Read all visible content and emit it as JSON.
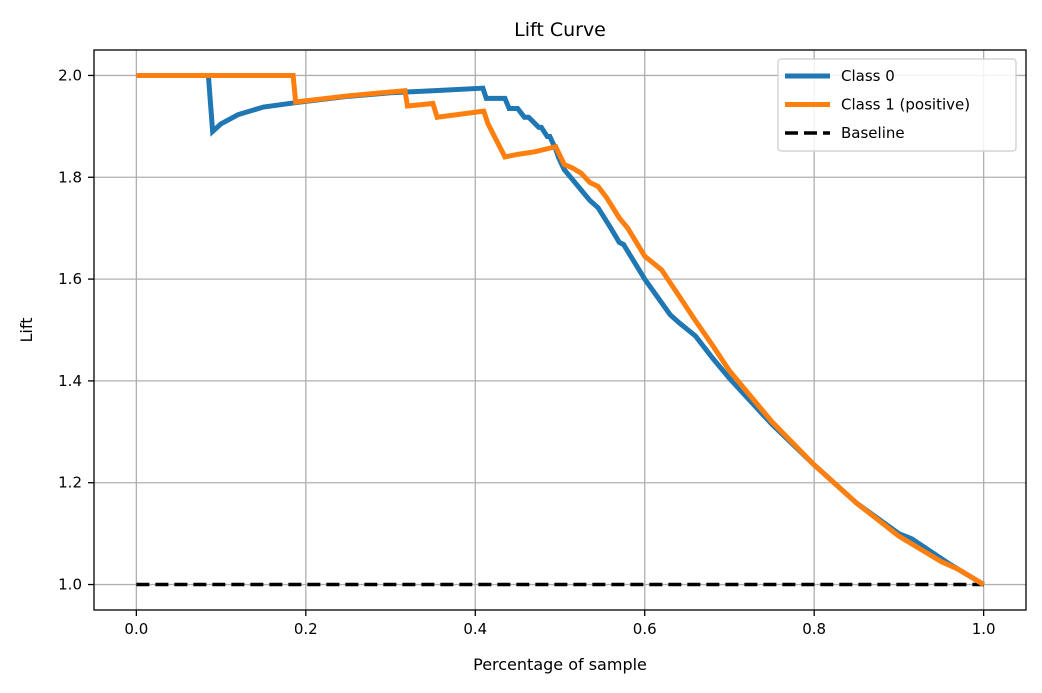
{
  "chart_data": {
    "type": "line",
    "title": "Lift Curve",
    "xlabel": "Percentage of sample",
    "ylabel": "Lift",
    "xlim": [
      -0.05,
      1.05
    ],
    "ylim": [
      0.95,
      2.05
    ],
    "xticks": [
      0.0,
      0.2,
      0.4,
      0.6,
      0.8,
      1.0
    ],
    "xtick_labels": [
      "0.0",
      "0.2",
      "0.4",
      "0.6",
      "0.8",
      "1.0"
    ],
    "yticks": [
      1.0,
      1.2,
      1.4,
      1.6,
      1.8,
      2.0
    ],
    "ytick_labels": [
      "1.0",
      "1.2",
      "1.4",
      "1.6",
      "1.8",
      "2.0"
    ],
    "grid": true,
    "legend_position": "top-right",
    "series": [
      {
        "name": "Class 0",
        "color": "#1f77b4",
        "style": "solid",
        "x": [
          0.0,
          0.085,
          0.09,
          0.1,
          0.12,
          0.15,
          0.19,
          0.25,
          0.3,
          0.35,
          0.409,
          0.413,
          0.435,
          0.44,
          0.45,
          0.458,
          0.463,
          0.475,
          0.478,
          0.485,
          0.488,
          0.495,
          0.498,
          0.505,
          0.515,
          0.525,
          0.535,
          0.545,
          0.56,
          0.57,
          0.575,
          0.6,
          0.63,
          0.64,
          0.66,
          0.68,
          0.7,
          0.75,
          0.8,
          0.85,
          0.9,
          0.915,
          0.96,
          1.0
        ],
        "y": [
          2.0,
          2.0,
          1.89,
          1.905,
          1.923,
          1.938,
          1.947,
          1.959,
          1.966,
          1.97,
          1.975,
          1.955,
          1.955,
          1.935,
          1.935,
          1.918,
          1.918,
          1.898,
          1.898,
          1.88,
          1.88,
          1.855,
          1.84,
          1.815,
          1.795,
          1.775,
          1.755,
          1.74,
          1.7,
          1.672,
          1.668,
          1.6,
          1.53,
          1.515,
          1.488,
          1.445,
          1.405,
          1.315,
          1.235,
          1.16,
          1.1,
          1.09,
          1.04,
          1.0
        ]
      },
      {
        "name": "Class 1 (positive)",
        "color": "#ff7f0e",
        "style": "solid",
        "x": [
          0.0,
          0.185,
          0.188,
          0.25,
          0.317,
          0.32,
          0.35,
          0.355,
          0.41,
          0.415,
          0.435,
          0.45,
          0.47,
          0.495,
          0.505,
          0.515,
          0.525,
          0.535,
          0.545,
          0.555,
          0.57,
          0.58,
          0.6,
          0.62,
          0.64,
          0.66,
          0.68,
          0.7,
          0.75,
          0.8,
          0.85,
          0.9,
          0.92,
          0.95,
          0.97,
          1.0
        ],
        "y": [
          2.0,
          2.0,
          1.948,
          1.96,
          1.97,
          1.94,
          1.945,
          1.918,
          1.93,
          1.905,
          1.84,
          1.845,
          1.85,
          1.86,
          1.825,
          1.818,
          1.808,
          1.79,
          1.782,
          1.76,
          1.72,
          1.7,
          1.645,
          1.618,
          1.568,
          1.518,
          1.47,
          1.42,
          1.32,
          1.235,
          1.16,
          1.095,
          1.075,
          1.045,
          1.03,
          1.0
        ]
      },
      {
        "name": "Baseline",
        "color": "#000000",
        "style": "dashed",
        "x": [
          0.0,
          1.0
        ],
        "y": [
          1.0,
          1.0
        ]
      }
    ]
  }
}
